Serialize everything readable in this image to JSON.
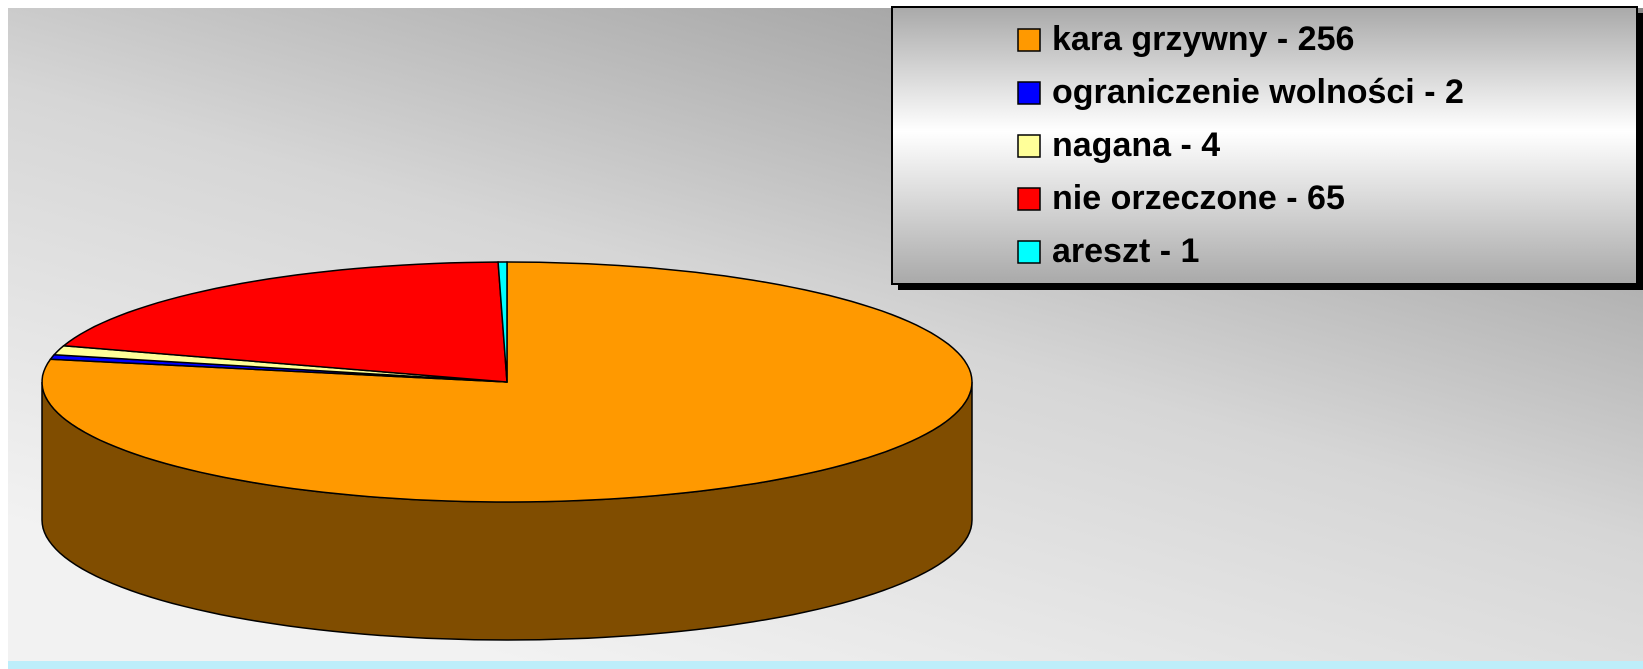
{
  "chart_data": {
    "type": "pie3d",
    "categories": [
      "kara grzywny - 256",
      "ograniczenie wolności - 2",
      "nagana - 4",
      "nie orzeczone - 65",
      "areszt - 1"
    ],
    "values": [
      256,
      2,
      4,
      65,
      1
    ],
    "colors": [
      "#ff9900",
      "#0000ff",
      "#ffff99",
      "#ff0000",
      "#00ffff"
    ],
    "legend": "top-right"
  }
}
